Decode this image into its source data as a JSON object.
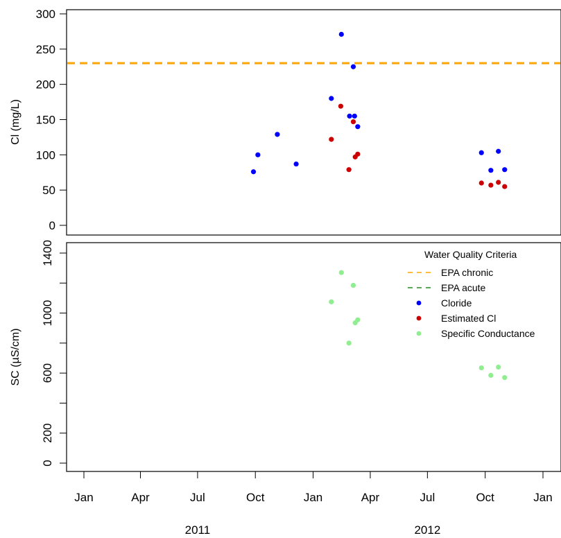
{
  "chart_data": [
    {
      "type": "scatter",
      "ylabel": "Cl (mg/L)",
      "ylim": [
        0,
        300
      ],
      "yticks": [
        0,
        50,
        100,
        150,
        200,
        250,
        300
      ],
      "reference_lines": [
        {
          "name": "EPA chronic",
          "y": 230,
          "color": "#FFA500",
          "style": "dashed"
        }
      ],
      "series": [
        {
          "name": "Cloride",
          "color": "#0000FF",
          "points": [
            {
              "x": "2011-09-28",
              "y": 76
            },
            {
              "x": "2011-10-05",
              "y": 100
            },
            {
              "x": "2011-11-05",
              "y": 129
            },
            {
              "x": "2011-12-05",
              "y": 87
            },
            {
              "x": "2012-01-30",
              "y": 180
            },
            {
              "x": "2012-02-15",
              "y": 271
            },
            {
              "x": "2012-02-28",
              "y": 155
            },
            {
              "x": "2012-03-05",
              "y": 225
            },
            {
              "x": "2012-03-07",
              "y": 155
            },
            {
              "x": "2012-03-12",
              "y": 140
            },
            {
              "x": "2012-09-25",
              "y": 103
            },
            {
              "x": "2012-10-10",
              "y": 78
            },
            {
              "x": "2012-10-22",
              "y": 105
            },
            {
              "x": "2012-11-01",
              "y": 79
            }
          ]
        },
        {
          "name": "Estimated Cl",
          "color": "#CC0000",
          "points": [
            {
              "x": "2012-01-30",
              "y": 122
            },
            {
              "x": "2012-02-14",
              "y": 169
            },
            {
              "x": "2012-02-27",
              "y": 79
            },
            {
              "x": "2012-03-05",
              "y": 147
            },
            {
              "x": "2012-03-08",
              "y": 97
            },
            {
              "x": "2012-03-12",
              "y": 101
            },
            {
              "x": "2012-09-25",
              "y": 60
            },
            {
              "x": "2012-10-10",
              "y": 57
            },
            {
              "x": "2012-10-22",
              "y": 61
            },
            {
              "x": "2012-11-01",
              "y": 55
            }
          ]
        }
      ]
    },
    {
      "type": "scatter",
      "ylabel": "SC (µS/cm)",
      "ylim": [
        0,
        1400
      ],
      "yticks": [
        0,
        200,
        600,
        1000,
        1400
      ],
      "yminor_ticks": [
        400,
        800,
        1200
      ],
      "xlabel_ticks": [
        "Jan",
        "Apr",
        "Jul",
        "Oct",
        "Jan",
        "Apr",
        "Jul",
        "Oct",
        "Jan"
      ],
      "xtick_dates": [
        "2011-01-01",
        "2011-04-01",
        "2011-07-01",
        "2011-10-01",
        "2012-01-01",
        "2012-04-01",
        "2012-07-01",
        "2012-10-01",
        "2013-01-01"
      ],
      "xlim": [
        "2010-12-01",
        "2013-01-31"
      ],
      "year_labels": [
        "2011",
        "2012"
      ],
      "series": [
        {
          "name": "Specific Conductance",
          "color": "#90EE90",
          "points": [
            {
              "x": "2012-01-30",
              "y": 1075
            },
            {
              "x": "2012-02-15",
              "y": 1270
            },
            {
              "x": "2012-02-27",
              "y": 800
            },
            {
              "x": "2012-03-05",
              "y": 1185
            },
            {
              "x": "2012-03-08",
              "y": 935
            },
            {
              "x": "2012-03-12",
              "y": 955
            },
            {
              "x": "2012-09-25",
              "y": 635
            },
            {
              "x": "2012-10-10",
              "y": 585
            },
            {
              "x": "2012-10-22",
              "y": 640
            },
            {
              "x": "2012-11-01",
              "y": 570
            }
          ]
        }
      ],
      "legend": {
        "title": "Water Quality Criteria",
        "position": "top-right",
        "entries": [
          {
            "label": "EPA chronic",
            "kind": "dashed",
            "color": "#FFA500"
          },
          {
            "label": "EPA acute",
            "kind": "dashed",
            "color": "#228B22"
          },
          {
            "label": "Cloride",
            "kind": "point",
            "color": "#0000FF"
          },
          {
            "label": "Estimated Cl",
            "kind": "point",
            "color": "#CC0000"
          },
          {
            "label": "Specific Conductance",
            "kind": "point",
            "color": "#90EE90"
          }
        ]
      }
    }
  ]
}
